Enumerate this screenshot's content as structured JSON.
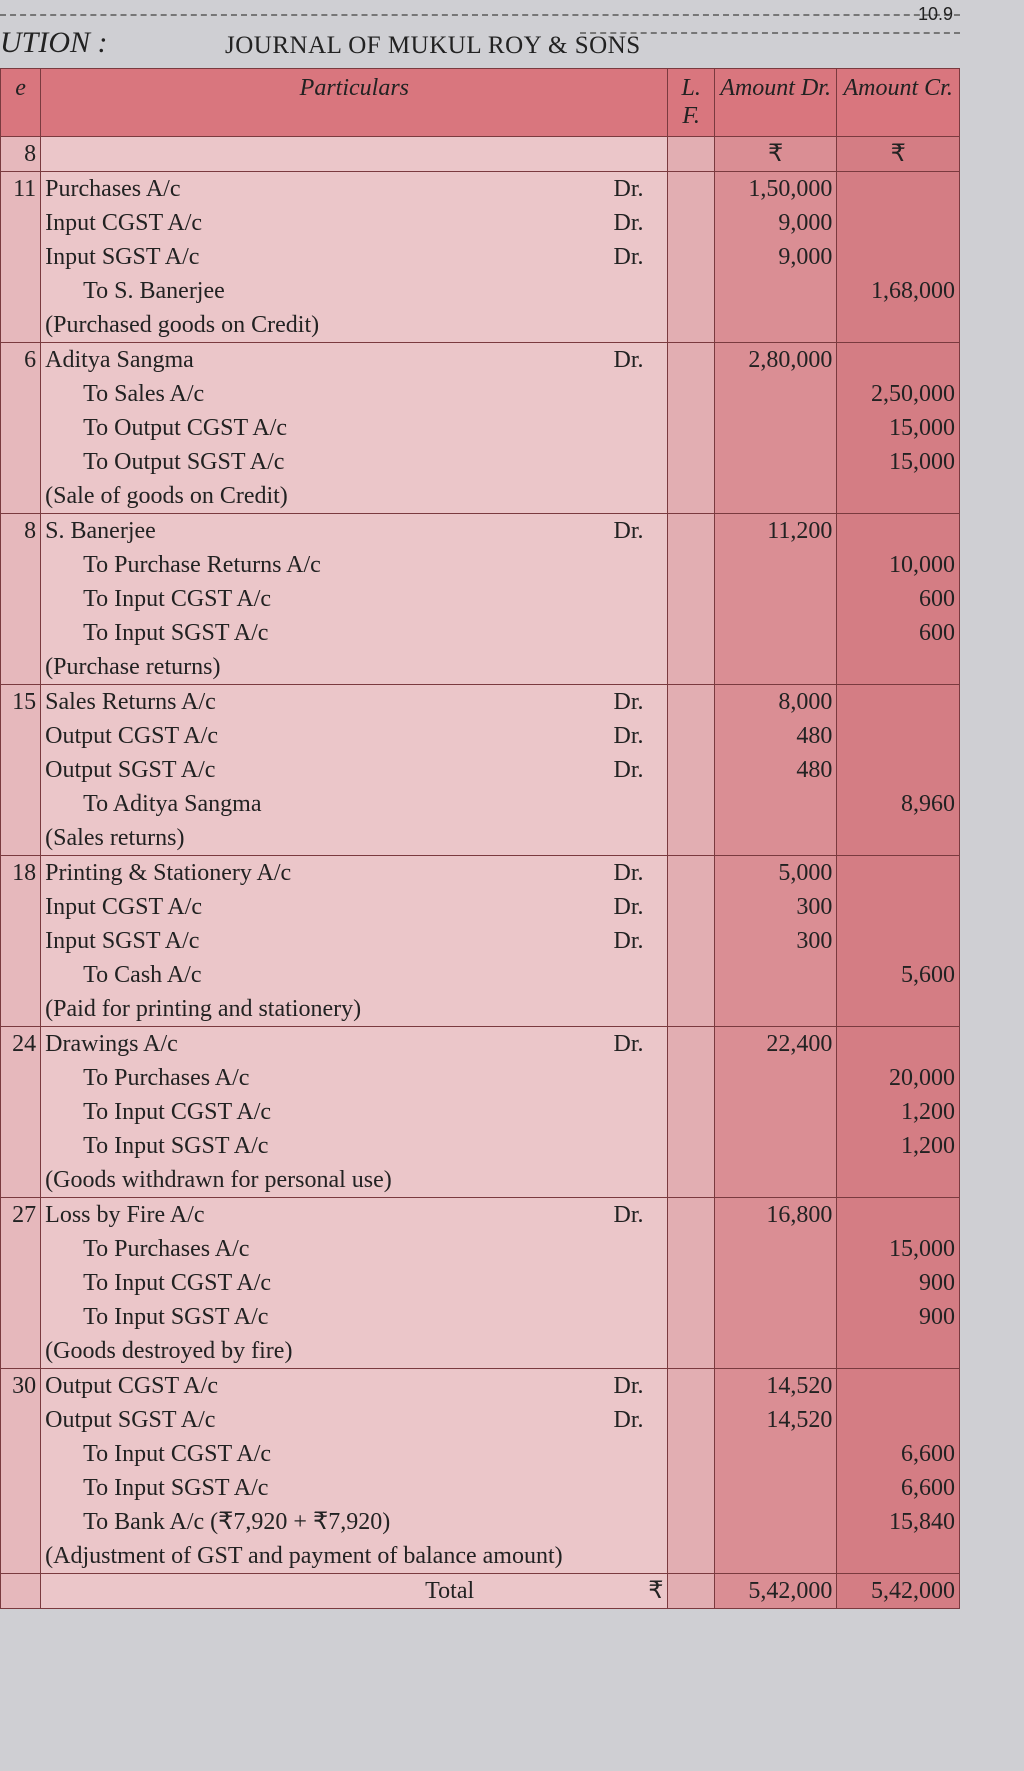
{
  "page_number": "10.9",
  "solution_label": "UTION :",
  "title": "JOURNAL OF MUKUL ROY & SONS",
  "headers": {
    "date": "e",
    "particulars": "Particulars",
    "lf": "L. F.",
    "dr": "Amount Dr.",
    "cr": "Amount Cr.",
    "year": "8",
    "currency_dr": "₹",
    "currency_cr": "₹"
  },
  "entries": [
    {
      "date": "11",
      "lines": [
        {
          "text": "Purchases A/c",
          "mark": "Dr.",
          "dr": "1,50,000",
          "cr": ""
        },
        {
          "text": "Input CGST A/c",
          "mark": "Dr.",
          "dr": "9,000",
          "cr": ""
        },
        {
          "text": "Input SGST A/c",
          "mark": "Dr.",
          "dr": "9,000",
          "cr": ""
        },
        {
          "text": "To S. Banerjee",
          "indent": true,
          "mark": "",
          "dr": "",
          "cr": "1,68,000"
        },
        {
          "text": "(Purchased goods on Credit)",
          "mark": "",
          "dr": "",
          "cr": ""
        }
      ]
    },
    {
      "date": "6",
      "lines": [
        {
          "text": "Aditya Sangma",
          "mark": "Dr.",
          "dr": "2,80,000",
          "cr": ""
        },
        {
          "text": "To Sales A/c",
          "indent": true,
          "mark": "",
          "dr": "",
          "cr": "2,50,000"
        },
        {
          "text": "To Output CGST A/c",
          "indent": true,
          "mark": "",
          "dr": "",
          "cr": "15,000"
        },
        {
          "text": "To Output SGST A/c",
          "indent": true,
          "mark": "",
          "dr": "",
          "cr": "15,000"
        },
        {
          "text": "(Sale of goods on Credit)",
          "mark": "",
          "dr": "",
          "cr": ""
        }
      ]
    },
    {
      "date": "8",
      "lines": [
        {
          "text": "S. Banerjee",
          "mark": "Dr.",
          "dr": "11,200",
          "cr": ""
        },
        {
          "text": "To Purchase Returns A/c",
          "indent": true,
          "mark": "",
          "dr": "",
          "cr": "10,000"
        },
        {
          "text": "To Input CGST A/c",
          "indent": true,
          "mark": "",
          "dr": "",
          "cr": "600"
        },
        {
          "text": "To Input SGST A/c",
          "indent": true,
          "mark": "",
          "dr": "",
          "cr": "600"
        },
        {
          "text": "(Purchase returns)",
          "mark": "",
          "dr": "",
          "cr": ""
        }
      ]
    },
    {
      "date": "15",
      "lines": [
        {
          "text": "Sales Returns A/c",
          "mark": "Dr.",
          "dr": "8,000",
          "cr": ""
        },
        {
          "text": "Output CGST A/c",
          "mark": "Dr.",
          "dr": "480",
          "cr": ""
        },
        {
          "text": "Output SGST A/c",
          "mark": "Dr.",
          "dr": "480",
          "cr": ""
        },
        {
          "text": "To Aditya Sangma",
          "indent": true,
          "mark": "",
          "dr": "",
          "cr": "8,960"
        },
        {
          "text": "(Sales returns)",
          "mark": "",
          "dr": "",
          "cr": ""
        }
      ]
    },
    {
      "date": "18",
      "lines": [
        {
          "text": "Printing & Stationery A/c",
          "mark": "Dr.",
          "dr": "5,000",
          "cr": ""
        },
        {
          "text": "Input CGST A/c",
          "mark": "Dr.",
          "dr": "300",
          "cr": ""
        },
        {
          "text": "Input SGST A/c",
          "mark": "Dr.",
          "dr": "300",
          "cr": ""
        },
        {
          "text": "To Cash A/c",
          "indent": true,
          "mark": "",
          "dr": "",
          "cr": "5,600"
        },
        {
          "text": "(Paid for printing and stationery)",
          "mark": "",
          "dr": "",
          "cr": ""
        }
      ]
    },
    {
      "date": "24",
      "lines": [
        {
          "text": "Drawings A/c",
          "mark": "Dr.",
          "dr": "22,400",
          "cr": ""
        },
        {
          "text": "To Purchases A/c",
          "indent": true,
          "mark": "",
          "dr": "",
          "cr": "20,000"
        },
        {
          "text": "To Input CGST A/c",
          "indent": true,
          "mark": "",
          "dr": "",
          "cr": "1,200"
        },
        {
          "text": "To Input SGST A/c",
          "indent": true,
          "mark": "",
          "dr": "",
          "cr": "1,200"
        },
        {
          "text": "(Goods withdrawn for personal use)",
          "mark": "",
          "dr": "",
          "cr": ""
        }
      ]
    },
    {
      "date": "27",
      "lines": [
        {
          "text": "Loss by Fire A/c",
          "mark": "Dr.",
          "dr": "16,800",
          "cr": ""
        },
        {
          "text": "To Purchases A/c",
          "indent": true,
          "mark": "",
          "dr": "",
          "cr": "15,000"
        },
        {
          "text": "To Input CGST A/c",
          "indent": true,
          "mark": "",
          "dr": "",
          "cr": "900"
        },
        {
          "text": "To Input SGST A/c",
          "indent": true,
          "mark": "",
          "dr": "",
          "cr": "900"
        },
        {
          "text": "(Goods destroyed by fire)",
          "mark": "",
          "dr": "",
          "cr": ""
        }
      ]
    },
    {
      "date": "30",
      "lines": [
        {
          "text": "Output CGST A/c",
          "mark": "Dr.",
          "dr": "14,520",
          "cr": ""
        },
        {
          "text": "Output SGST A/c",
          "mark": "Dr.",
          "dr": "14,520",
          "cr": ""
        },
        {
          "text": "To Input CGST A/c",
          "indent": true,
          "mark": "",
          "dr": "",
          "cr": "6,600"
        },
        {
          "text": "To Input SGST A/c",
          "indent": true,
          "mark": "",
          "dr": "",
          "cr": "6,600"
        },
        {
          "text": "To Bank A/c (₹7,920 + ₹7,920)",
          "indent": true,
          "mark": "",
          "dr": "",
          "cr": "15,840"
        },
        {
          "text": "(Adjustment of GST and payment of balance amount)",
          "mark": "",
          "dr": "",
          "cr": ""
        }
      ]
    }
  ],
  "total": {
    "label": "Total",
    "currency": "₹",
    "dr": "5,42,000",
    "cr": "5,42,000"
  }
}
